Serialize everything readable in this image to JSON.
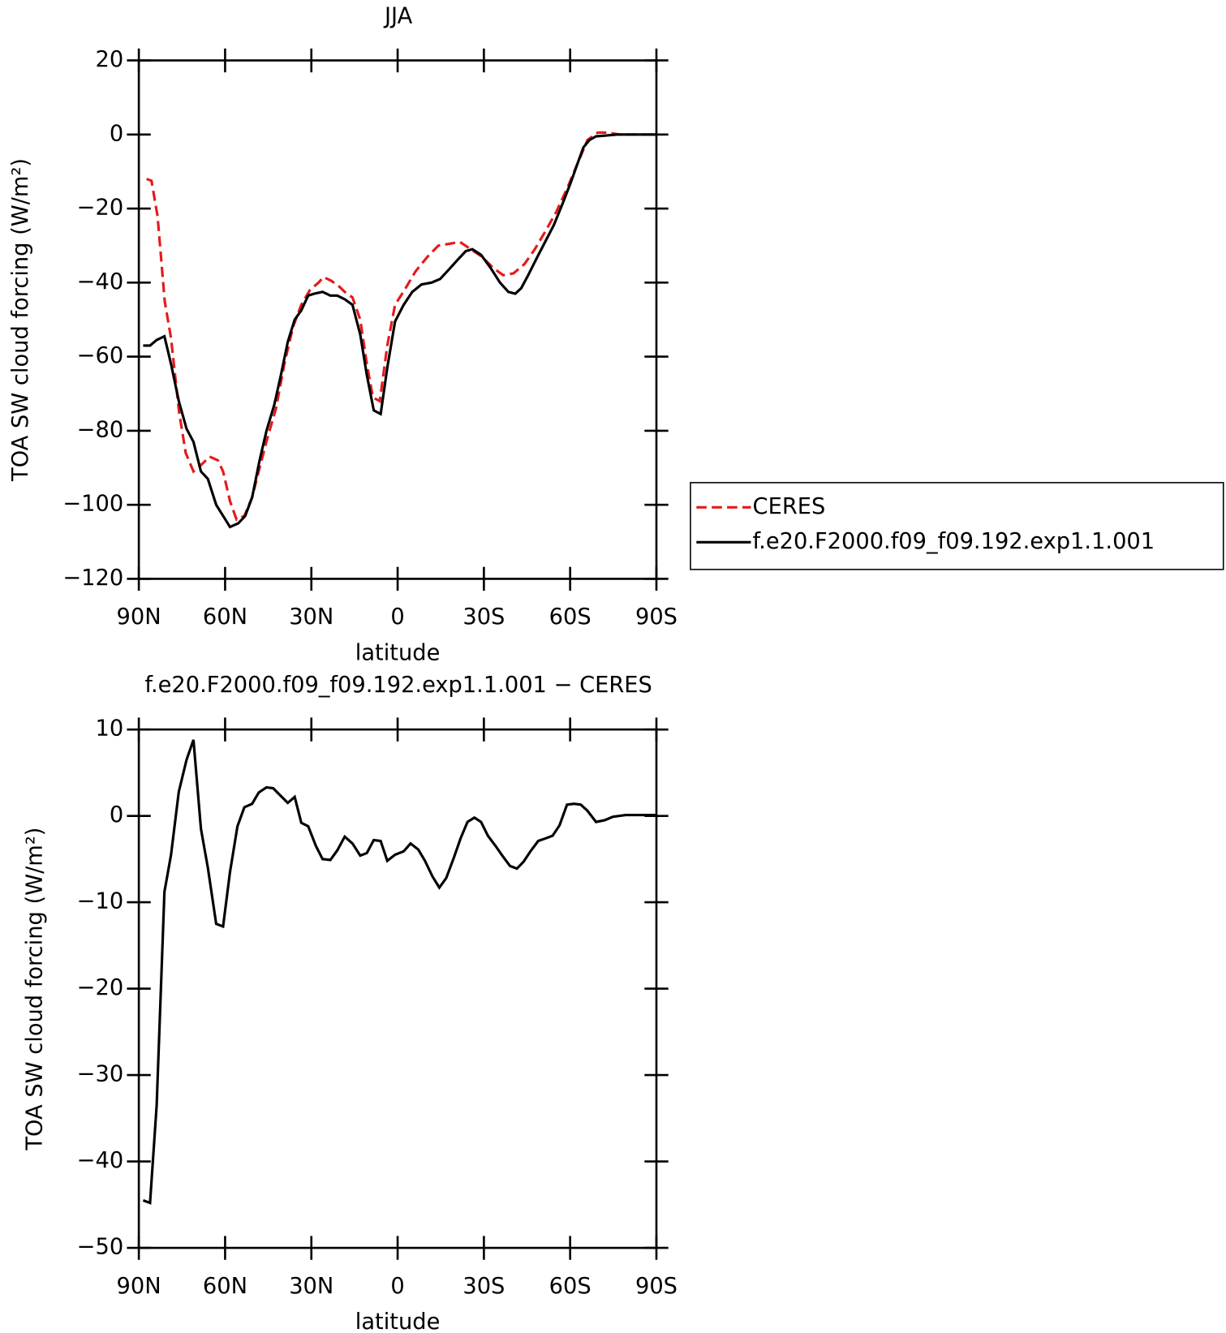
{
  "chart_data": [
    {
      "type": "line",
      "title": "JJA",
      "xlabel": "latitude",
      "ylabel": "TOA SW cloud forcing (W/m²)",
      "xlim": [
        90,
        -90
      ],
      "xticks": [
        {
          "value": 90,
          "label": "90N"
        },
        {
          "value": 60,
          "label": "60N"
        },
        {
          "value": 30,
          "label": "30N"
        },
        0,
        {
          "value": -30,
          "label": "30S"
        },
        {
          "value": -60,
          "label": "60S"
        },
        {
          "value": -90,
          "label": "90S"
        }
      ],
      "ylim": [
        -120,
        20
      ],
      "yticks": [
        {
          "value": -120,
          "label": "−120"
        },
        {
          "value": -100,
          "label": "−100"
        },
        {
          "value": -80,
          "label": "−80"
        },
        {
          "value": -60,
          "label": "−60"
        },
        {
          "value": -40,
          "label": "−40"
        },
        {
          "value": -20,
          "label": "−20"
        },
        0,
        20
      ],
      "legend": "right",
      "series": [
        {
          "name": "CERES",
          "color": "#e41a1c",
          "style": "dashed",
          "x": [
            87.3,
            85.6,
            83.5,
            81,
            78.8,
            76,
            73.7,
            71,
            68,
            65.4,
            62.5,
            60.7,
            58.3,
            56,
            53.3,
            50.6,
            48,
            45.3,
            42.3,
            39.4,
            36.4,
            33.5,
            30.5,
            27.5,
            25.8,
            23.1,
            20.4,
            18.4,
            15.7,
            13,
            10.7,
            8.6,
            6.2,
            3.6,
            0.9,
            -2.4,
            -6.2,
            -10.4,
            -14.2,
            -18.1,
            -21.6,
            -25.5,
            -29.3,
            -33.2,
            -36.7,
            -40.3,
            -44.1,
            -47.7,
            -51.5,
            -55.1,
            -58.7,
            -62.5,
            -66,
            -69.6,
            -73.1,
            -77,
            -82.3,
            -89.7
          ],
          "values": [
            -12,
            -12.5,
            -22,
            -45,
            -55,
            -75,
            -86,
            -91,
            -89,
            -87,
            -88,
            -91,
            -99,
            -104,
            -103,
            -98,
            -90,
            -82,
            -74,
            -62,
            -52,
            -46,
            -42,
            -40,
            -38.5,
            -39.5,
            -41,
            -42.5,
            -44,
            -50,
            -62,
            -71,
            -72,
            -57,
            -46,
            -42,
            -37,
            -33,
            -30,
            -29.5,
            -29,
            -31,
            -33,
            -36,
            -38,
            -37.5,
            -35,
            -31,
            -26,
            -21,
            -15,
            -8,
            -1.5,
            0.5,
            0.5,
            0,
            0,
            0
          ]
        },
        {
          "name": "f.e20.F2000.f09_f09.192.exp1.1.001",
          "color": "#000000",
          "style": "solid",
          "x": [
            88.5,
            86.1,
            83.8,
            81.1,
            78.8,
            76.1,
            73.4,
            71,
            68.4,
            66,
            63.1,
            60.7,
            58.3,
            55.4,
            53,
            50.6,
            48,
            45.6,
            42.9,
            40.6,
            38.2,
            35.8,
            33.5,
            31.1,
            29,
            26.1,
            23.4,
            21,
            18.4,
            15.7,
            13,
            10.7,
            8.3,
            5.9,
            3.6,
            0.9,
            -2.1,
            -5.1,
            -8.3,
            -11.8,
            -14.8,
            -17.8,
            -20.7,
            -23.7,
            -26,
            -29,
            -32.3,
            -35.6,
            -38.5,
            -40.9,
            -43,
            -45.4,
            -48.3,
            -51.3,
            -54.3,
            -57.2,
            -60.2,
            -62.5,
            -64.6,
            -66.7,
            -69,
            -72,
            -76.4,
            -82.3,
            -89.7
          ],
          "values": [
            -57,
            -57,
            -55.5,
            -54.5,
            -62,
            -72,
            -79.5,
            -83,
            -91,
            -93,
            -100,
            -103,
            -106,
            -105,
            -103,
            -98,
            -88,
            -80,
            -73,
            -65,
            -56,
            -50,
            -47.5,
            -43.5,
            -43,
            -42.5,
            -43.5,
            -43.5,
            -44.5,
            -46,
            -54,
            -65,
            -74.5,
            -75.5,
            -63,
            -50.5,
            -46,
            -42.5,
            -40.5,
            -40,
            -39,
            -36.5,
            -34,
            -31.5,
            -31,
            -32.5,
            -36,
            -40,
            -42.5,
            -43,
            -41.5,
            -38,
            -33.5,
            -29,
            -24.5,
            -19,
            -13,
            -8,
            -3.5,
            -1.5,
            -0.5,
            -0.3,
            0,
            0,
            0
          ]
        }
      ]
    },
    {
      "type": "line",
      "title": "f.e20.F2000.f09_f09.192.exp1.1.001 − CERES",
      "xlabel": "latitude",
      "ylabel": "TOA SW cloud forcing (W/m²)",
      "xlim": [
        90,
        -90
      ],
      "xticks": [
        {
          "value": 90,
          "label": "90N"
        },
        {
          "value": 60,
          "label": "60N"
        },
        {
          "value": 30,
          "label": "30N"
        },
        0,
        {
          "value": -30,
          "label": "30S"
        },
        {
          "value": -60,
          "label": "60S"
        },
        {
          "value": -90,
          "label": "90S"
        }
      ],
      "ylim": [
        -50,
        10
      ],
      "yticks": [
        {
          "value": -50,
          "label": "−50"
        },
        {
          "value": -40,
          "label": "−40"
        },
        {
          "value": -30,
          "label": "−30"
        },
        {
          "value": -20,
          "label": "−20"
        },
        {
          "value": -10,
          "label": "−10"
        },
        0,
        10
      ],
      "color": "#000000",
      "x": [
        88.5,
        86.1,
        83.8,
        81.1,
        78.8,
        76.1,
        73.4,
        71,
        68.4,
        66,
        63.1,
        60.7,
        58.3,
        55.7,
        53.3,
        50.6,
        48.3,
        45.6,
        43.3,
        40.6,
        38.2,
        35.8,
        33.5,
        31.1,
        28.4,
        26.1,
        23.4,
        21,
        18.4,
        15.7,
        13,
        10.7,
        8.3,
        5.9,
        3.6,
        0.9,
        -2.1,
        -4.5,
        -7.2,
        -9.5,
        -12.1,
        -14.5,
        -16.9,
        -19.6,
        -21.9,
        -24.3,
        -26.7,
        -29,
        -31.4,
        -34.1,
        -36.4,
        -39.1,
        -41.5,
        -43.8,
        -46.2,
        -48.9,
        -51.5,
        -53.9,
        -56.3,
        -58.9,
        -61.3,
        -63.7,
        -66,
        -69,
        -72,
        -74.9,
        -79.3,
        -83.8,
        -89.7
      ],
      "values": [
        -44.5,
        -44.8,
        -33.5,
        -8.8,
        -4.5,
        2.8,
        6.5,
        8.8,
        -1.5,
        -6,
        -12.5,
        -12.8,
        -6.5,
        -1.2,
        1,
        1.4,
        2.7,
        3.3,
        3.2,
        2.3,
        1.5,
        2.2,
        -0.8,
        -1.2,
        -3.5,
        -5,
        -5.1,
        -4,
        -2.4,
        -3.2,
        -4.6,
        -4.3,
        -2.8,
        -2.9,
        -5.2,
        -4.5,
        -4.1,
        -3.2,
        -3.9,
        -5.2,
        -7,
        -8.3,
        -7.2,
        -4.8,
        -2.6,
        -0.7,
        -0.2,
        -0.7,
        -2.3,
        -3.5,
        -4.6,
        -5.8,
        -6.1,
        -5.3,
        -4.1,
        -2.9,
        -2.6,
        -2.3,
        -1.1,
        1.3,
        1.4,
        1.3,
        0.6,
        -0.7,
        -0.5,
        -0.1,
        0.1,
        0.1,
        0.1
      ]
    }
  ]
}
